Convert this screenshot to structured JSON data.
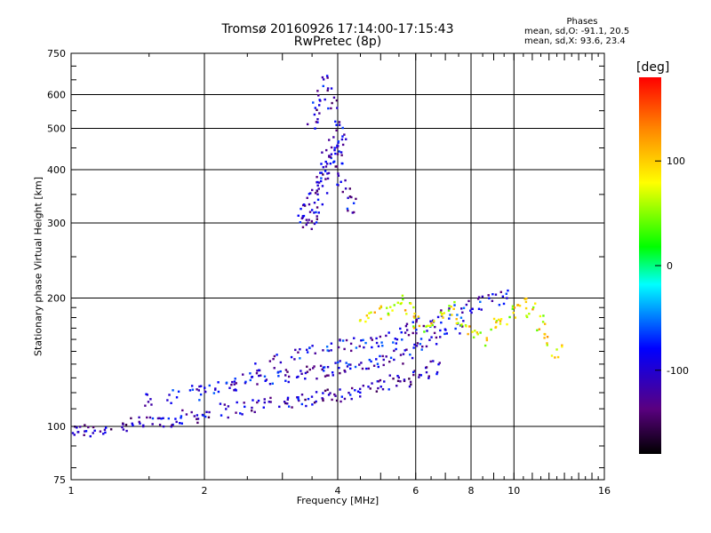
{
  "chart_data": {
    "type": "scatter",
    "title": "Tromsø 20160926 17:14:00-17:15:43",
    "subtitle": "RwPretec (8p)",
    "xlabel": "Frequency [MHz]",
    "ylabel": "Stationary phase Virtual Height [km]",
    "x_scale": "log",
    "y_scale": "log",
    "xlim": [
      1,
      16
    ],
    "ylim": [
      75,
      750
    ],
    "x_ticks": [
      "1",
      "2",
      "4",
      "6",
      "8",
      "10",
      "16"
    ],
    "y_ticks": [
      "75",
      "100",
      "200",
      "300",
      "400",
      "500",
      "600",
      "750"
    ],
    "grid": true,
    "stats": {
      "heading": "Phases",
      "line1": "mean, sd,O: -91.1, 20.5",
      "line2": "mean, sd,X:  93.6, 23.4"
    },
    "colorbar": {
      "label": "[deg]",
      "range": [
        -180,
        180
      ],
      "ticks": [
        "100",
        "0",
        "-100"
      ],
      "colormap": "rainbow"
    },
    "traces": [
      {
        "name_hint": "o-trace lower",
        "phase": -110,
        "x": [
          1.0,
          1.05,
          1.1,
          1.2,
          1.3,
          1.4,
          1.5,
          1.6,
          1.7,
          1.8,
          1.9,
          2.0,
          2.2,
          2.4,
          2.6,
          2.8,
          3.0,
          3.2,
          3.4,
          3.6,
          3.8,
          4.0,
          4.2,
          4.5,
          4.8,
          5.1,
          5.4,
          5.7,
          6.0,
          6.3,
          6.6
        ],
        "y": [
          98,
          98,
          98,
          99,
          100,
          101,
          102,
          103,
          104,
          105,
          106,
          107,
          109,
          111,
          112,
          113,
          114,
          115,
          116,
          117,
          118,
          119,
          120,
          121,
          123,
          125,
          127,
          129,
          131,
          134,
          138
        ]
      },
      {
        "name_hint": "o-trace middle",
        "phase": -100,
        "x": [
          1.5,
          1.7,
          1.9,
          2.1,
          2.3,
          2.5,
          2.7,
          2.9,
          3.1,
          3.3,
          3.5,
          3.7,
          3.9,
          4.1,
          4.3,
          4.6,
          4.9,
          5.2,
          5.5,
          5.8,
          6.1,
          6.5,
          7.0,
          7.5
        ],
        "y": [
          115,
          117,
          120,
          123,
          126,
          128,
          130,
          131,
          132,
          133,
          134,
          135,
          137,
          138,
          139,
          140,
          141,
          143,
          146,
          150,
          155,
          160,
          166,
          172
        ]
      },
      {
        "name_hint": "o-trace upper",
        "phase": -95,
        "x": [
          2.0,
          2.3,
          2.6,
          2.9,
          3.2,
          3.5,
          3.8,
          4.1,
          4.4,
          4.7,
          5.0,
          5.3,
          5.6,
          5.9,
          6.2,
          6.6,
          7.0,
          7.5,
          8.0,
          8.5,
          9.0,
          9.5
        ],
        "y": [
          120,
          128,
          136,
          142,
          147,
          150,
          152,
          154,
          156,
          158,
          160,
          163,
          166,
          170,
          174,
          178,
          182,
          186,
          190,
          194,
          198,
          202
        ]
      },
      {
        "name_hint": "F-region cluster",
        "phase": -105,
        "x": [
          3.3,
          3.4,
          3.5,
          3.6,
          3.7,
          3.8,
          3.9,
          4.0,
          4.1,
          4.2,
          4.3,
          3.5,
          3.6,
          3.7,
          3.8,
          3.9,
          4.0,
          3.4,
          3.5,
          3.6,
          3.7,
          3.8,
          3.9,
          4.0,
          4.1
        ],
        "y": [
          305,
          320,
          345,
          370,
          400,
          430,
          460,
          420,
          380,
          350,
          330,
          520,
          560,
          600,
          640,
          580,
          500,
          300,
          310,
          330,
          360,
          390,
          420,
          450,
          470
        ]
      },
      {
        "name_hint": "mixed x-trace",
        "phase": 80,
        "x": [
          4.6,
          4.9,
          5.2,
          5.5,
          5.8,
          6.1,
          6.4,
          6.8,
          7.2,
          7.6,
          8.0,
          8.5,
          9.0,
          9.5,
          10.0,
          10.5,
          11.0,
          11.5,
          12.0,
          12.5
        ],
        "y": [
          180,
          185,
          190,
          195,
          188,
          176,
          170,
          182,
          190,
          178,
          168,
          160,
          172,
          180,
          186,
          192,
          188,
          175,
          160,
          150
        ]
      }
    ]
  }
}
